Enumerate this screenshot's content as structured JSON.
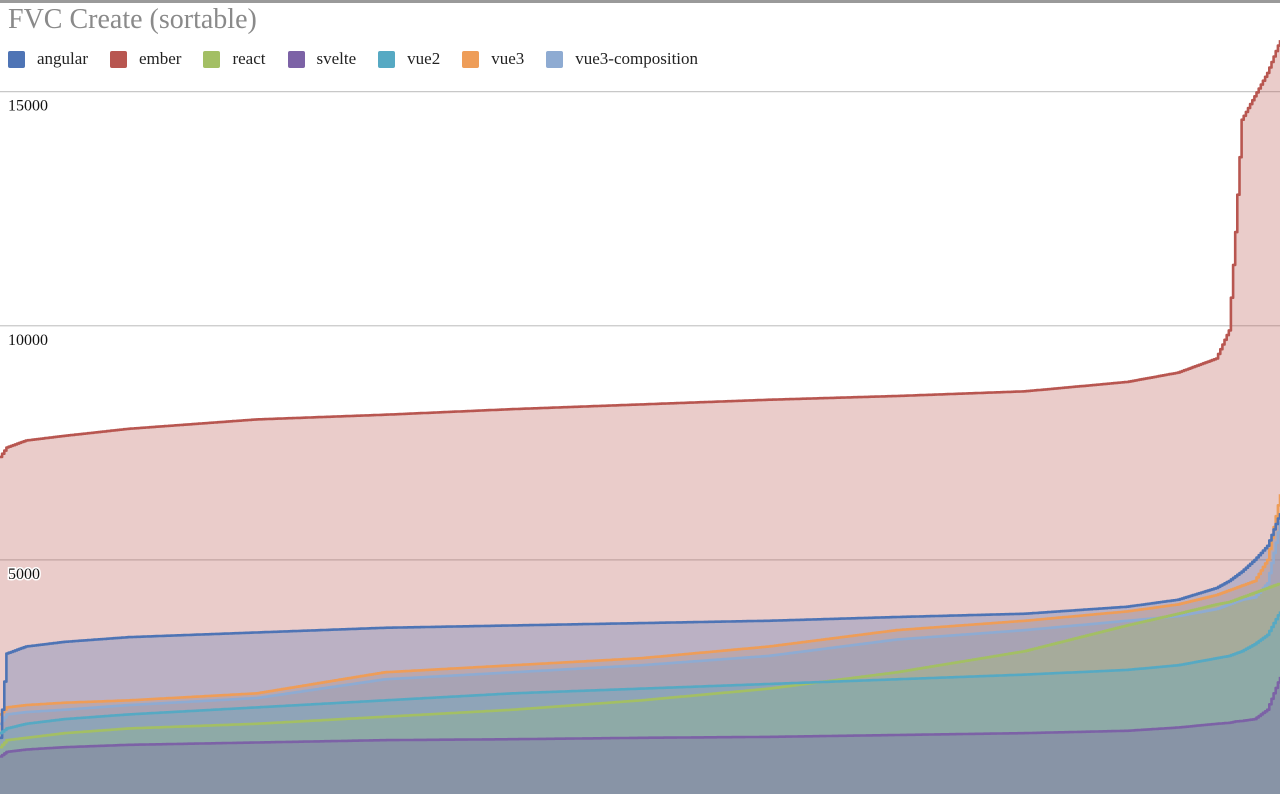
{
  "chart_data": {
    "type": "area",
    "title": "FVC Create (sortable)",
    "xlabel": "",
    "ylabel": "",
    "ylim": [
      0,
      17000
    ],
    "xlim": [
      0,
      100
    ],
    "yticks": [
      5000,
      10000,
      15000
    ],
    "grid": true,
    "legend": "top-left",
    "x": [
      0,
      0.5,
      2,
      5,
      10,
      20,
      30,
      40,
      50,
      60,
      70,
      80,
      88,
      92,
      95,
      96,
      96.5,
      97,
      98,
      99,
      100
    ],
    "series": [
      {
        "name": "ember",
        "color": "#b85650",
        "values": [
          7200,
          7400,
          7550,
          7650,
          7800,
          8000,
          8100,
          8220,
          8320,
          8420,
          8500,
          8600,
          8800,
          9000,
          9300,
          9900,
          12000,
          14400,
          14900,
          15400,
          16100
        ]
      },
      {
        "name": "vue3",
        "color": "#ee9d58",
        "values": [
          1700,
          1850,
          1900,
          1950,
          2000,
          2150,
          2600,
          2750,
          2900,
          3150,
          3500,
          3700,
          3900,
          4050,
          4250,
          4350,
          4400,
          4450,
          4550,
          5000,
          6400
        ]
      },
      {
        "name": "vue3-composition",
        "color": "#8eabd2",
        "values": [
          1500,
          1700,
          1750,
          1800,
          1900,
          2050,
          2450,
          2600,
          2750,
          2950,
          3300,
          3500,
          3700,
          3800,
          3950,
          4050,
          4100,
          4150,
          4200,
          4500,
          5800
        ]
      },
      {
        "name": "angular",
        "color": "#4e74b5",
        "values": [
          1200,
          3000,
          3150,
          3250,
          3350,
          3450,
          3550,
          3600,
          3650,
          3700,
          3780,
          3850,
          4000,
          4150,
          4400,
          4550,
          4650,
          4750,
          5000,
          5300,
          6000
        ]
      },
      {
        "name": "react",
        "color": "#a3bf64",
        "values": [
          1000,
          1150,
          1200,
          1300,
          1400,
          1500,
          1650,
          1800,
          2000,
          2250,
          2600,
          3050,
          3600,
          3850,
          4050,
          4100,
          4150,
          4200,
          4300,
          4400,
          4500
        ]
      },
      {
        "name": "vue2",
        "color": "#56a9c3",
        "values": [
          1300,
          1400,
          1500,
          1600,
          1700,
          1850,
          2000,
          2150,
          2250,
          2350,
          2450,
          2550,
          2650,
          2750,
          2900,
          2950,
          3000,
          3050,
          3200,
          3400,
          3900
        ]
      },
      {
        "name": "svelte",
        "color": "#7c62a6",
        "values": [
          800,
          900,
          950,
          1000,
          1050,
          1100,
          1150,
          1170,
          1200,
          1220,
          1260,
          1300,
          1350,
          1420,
          1500,
          1520,
          1550,
          1560,
          1600,
          1800,
          2500
        ]
      }
    ],
    "legend_order": [
      "angular",
      "ember",
      "react",
      "svelte",
      "vue2",
      "vue3",
      "vue3-composition"
    ]
  }
}
